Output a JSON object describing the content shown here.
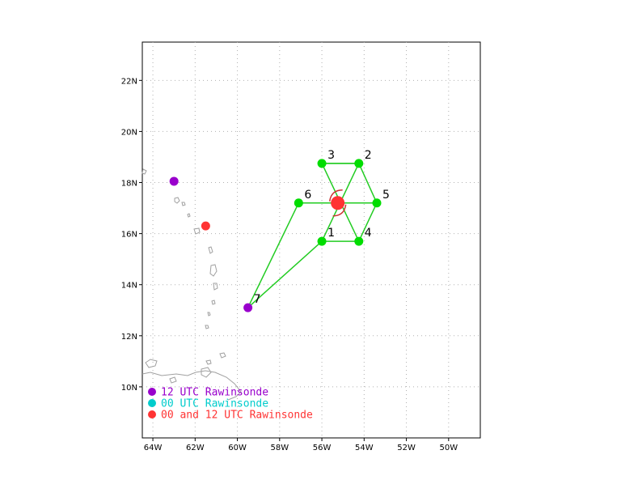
{
  "map": {
    "lon_range": [
      -64.5,
      -48.5
    ],
    "lat_range": [
      8,
      23.5
    ],
    "x_ticks": [
      {
        "lon": -64,
        "label": "64W"
      },
      {
        "lon": -62,
        "label": "62W"
      },
      {
        "lon": -60,
        "label": "60W"
      },
      {
        "lon": -58,
        "label": "58W"
      },
      {
        "lon": -56,
        "label": "56W"
      },
      {
        "lon": -54,
        "label": "54W"
      },
      {
        "lon": -52,
        "label": "52W"
      },
      {
        "lon": -50,
        "label": "50W"
      }
    ],
    "y_ticks": [
      {
        "lat": 10,
        "label": "10N"
      },
      {
        "lat": 12,
        "label": "12N"
      },
      {
        "lat": 14,
        "label": "14N"
      },
      {
        "lat": 16,
        "label": "16N"
      },
      {
        "lat": 18,
        "label": "18N"
      },
      {
        "lat": 20,
        "label": "20N"
      },
      {
        "lat": 22,
        "label": "22N"
      }
    ],
    "grid": true,
    "colors": {
      "grid": "#b0b0b0",
      "coast": "#a0a0a0",
      "track": "#22cc22",
      "dropsonde": "#00dd00",
      "rawinsonde_12": "#9900cc",
      "rawinsonde_00": "#00cccc",
      "rawinsonde_both": "#ff3333",
      "storm": "#ff3333",
      "storm_symbol": "#cc3333"
    }
  },
  "storm_center": {
    "lon": -55.25,
    "lat": 17.2
  },
  "dropsondes": [
    {
      "label": "1",
      "lon": -56.0,
      "lat": 15.7
    },
    {
      "label": "2",
      "lon": -54.25,
      "lat": 18.75
    },
    {
      "label": "3",
      "lon": -56.0,
      "lat": 18.75
    },
    {
      "label": "4",
      "lon": -54.25,
      "lat": 15.7
    },
    {
      "label": "5",
      "lon": -53.4,
      "lat": 17.2
    },
    {
      "label": "6",
      "lon": -57.1,
      "lat": 17.2
    }
  ],
  "track_order": [
    "7",
    "1",
    "2",
    "3",
    "4",
    "5",
    "6",
    "7"
  ],
  "rawinsondes": [
    {
      "label": "7",
      "type": "12",
      "lon": -59.5,
      "lat": 13.1
    },
    {
      "label": "",
      "type": "12",
      "lon": -63.0,
      "lat": 18.05
    },
    {
      "label": "",
      "type": "both",
      "lon": -61.5,
      "lat": 16.3
    }
  ],
  "legend": [
    {
      "type": "12",
      "text": "12 UTC Rawinsonde"
    },
    {
      "type": "00",
      "text": "00 UTC Rawinsonde"
    },
    {
      "type": "both",
      "text": "00 and 12 UTC Rawinsonde"
    }
  ]
}
